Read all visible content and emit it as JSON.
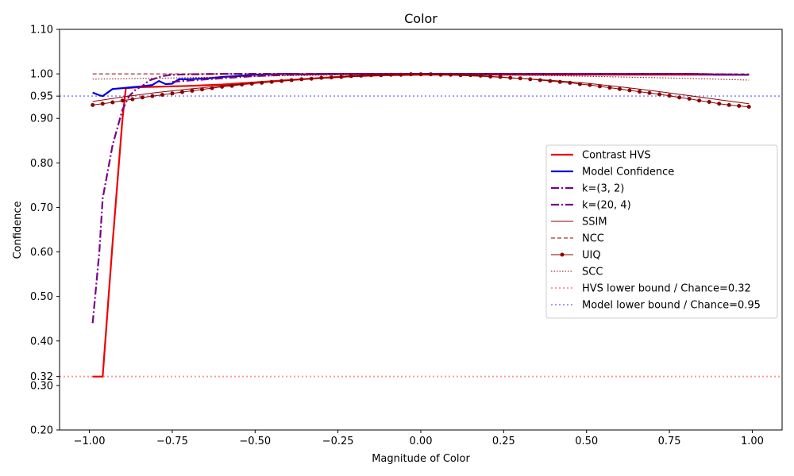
{
  "chart_data": {
    "type": "line",
    "title": "Color",
    "xlabel": "Magnitude of Color",
    "ylabel": "Confidence",
    "xlim": [
      -1.09,
      1.09
    ],
    "ylim": [
      0.2,
      1.1
    ],
    "x_ticks": [
      -1.0,
      -0.75,
      -0.5,
      -0.25,
      0.0,
      0.25,
      0.5,
      0.75,
      1.0
    ],
    "x_tick_labels": [
      "−1.00",
      "−0.75",
      "−0.50",
      "−0.25",
      "0.00",
      "0.25",
      "0.50",
      "0.75",
      "1.00"
    ],
    "y_ticks": [
      0.2,
      0.3,
      0.4,
      0.5,
      0.6,
      0.7,
      0.8,
      0.9,
      1.0,
      1.1
    ],
    "y_tick_labels": [
      "0.20",
      "0.30",
      "0.40",
      "0.50",
      "0.60",
      "0.70",
      "0.80",
      "0.90",
      "1.00",
      "1.10"
    ],
    "special_y_ticks": [
      {
        "value": 0.32,
        "label": "0.32",
        "color": "#ff0000"
      },
      {
        "value": 0.95,
        "label": "0.95",
        "color": "#0000cc"
      }
    ],
    "grid": false,
    "legend_position": "center-right",
    "series": [
      {
        "name": "Contrast HVS",
        "color": "#ee0000",
        "width": 2.2,
        "dash": "",
        "marker": false,
        "x": [
          -0.99,
          -0.97,
          -0.96,
          -0.93,
          -0.9,
          -0.89,
          -0.85,
          -0.8,
          -0.75,
          -0.7,
          -0.6,
          -0.5,
          -0.4,
          -0.3,
          -0.25,
          -0.2,
          -0.1,
          0.0,
          0.1,
          0.2,
          0.3,
          0.4,
          0.5,
          0.6,
          0.7,
          0.8,
          0.9,
          0.99
        ],
        "y": [
          0.32,
          0.32,
          0.32,
          0.62,
          0.9,
          0.968,
          0.97,
          0.971,
          0.972,
          0.973,
          0.976,
          0.981,
          0.986,
          0.991,
          0.993,
          0.995,
          0.997,
          0.998,
          0.998,
          0.998,
          0.998,
          0.998,
          0.998,
          0.998,
          0.998,
          0.998,
          0.998,
          0.998
        ]
      },
      {
        "name": "Model Confidence",
        "color": "#0000dd",
        "width": 2.2,
        "dash": "",
        "marker": false,
        "x": [
          -0.99,
          -0.97,
          -0.96,
          -0.93,
          -0.9,
          -0.87,
          -0.84,
          -0.81,
          -0.79,
          -0.77,
          -0.75,
          -0.73,
          -0.7,
          -0.67,
          -0.64,
          -0.6,
          -0.55,
          -0.5,
          -0.45,
          -0.4,
          -0.35,
          -0.3,
          -0.2,
          -0.1,
          0.0,
          0.2,
          0.4,
          0.6,
          0.8,
          0.9,
          0.99
        ],
        "y": [
          0.958,
          0.952,
          0.95,
          0.966,
          0.968,
          0.97,
          0.972,
          0.975,
          0.984,
          0.977,
          0.978,
          0.988,
          0.988,
          0.989,
          0.99,
          0.993,
          0.995,
          0.998,
          0.999,
          1.0,
          0.999,
          1.0,
          1.0,
          1.0,
          1.0,
          1.0,
          1.0,
          1.0,
          1.0,
          0.998,
          0.998
        ]
      },
      {
        "name": "k=(3, 2)",
        "color": "#7a008a",
        "width": 2.2,
        "dash": "10,3,2,3",
        "marker": false,
        "x": [
          -0.99,
          -0.97,
          -0.96,
          -0.93,
          -0.9,
          -0.88,
          -0.86,
          -0.84,
          -0.82,
          -0.8,
          -0.78,
          -0.75,
          -0.7,
          -0.6,
          -0.5,
          -0.4,
          -0.3,
          -0.2,
          0.0,
          0.2,
          0.4,
          0.6,
          0.8,
          0.99
        ],
        "y": [
          0.44,
          0.6,
          0.72,
          0.84,
          0.92,
          0.95,
          0.965,
          0.973,
          0.985,
          0.99,
          0.995,
          0.998,
          0.999,
          1.0,
          1.0,
          1.0,
          1.0,
          1.0,
          1.0,
          1.0,
          1.0,
          1.0,
          1.0,
          0.998
        ]
      },
      {
        "name": "k=(20, 4)",
        "color": "#7a008a",
        "width": 2.2,
        "dash": "10,3,2,3",
        "marker": false,
        "x": [
          -0.75,
          -0.7,
          -0.6,
          -0.5,
          -0.4,
          -0.3,
          -0.2,
          0.0,
          0.2,
          0.4,
          0.6,
          0.8,
          0.99
        ],
        "y": [
          0.982,
          0.985,
          0.99,
          0.995,
          0.998,
          0.999,
          1.0,
          1.0,
          1.0,
          1.0,
          1.0,
          1.0,
          0.998
        ]
      },
      {
        "name": "SSIM",
        "color": "#8b0000",
        "width": 1,
        "dash": "",
        "marker": false,
        "x": [
          -0.99,
          -0.9,
          -0.8,
          -0.7,
          -0.6,
          -0.5,
          -0.4,
          -0.3,
          -0.2,
          -0.1,
          0.0,
          0.1,
          0.2,
          0.3,
          0.4,
          0.5,
          0.6,
          0.7,
          0.8,
          0.9,
          0.99
        ],
        "y": [
          0.938,
          0.948,
          0.958,
          0.966,
          0.973,
          0.979,
          0.985,
          0.99,
          0.994,
          0.997,
          0.999,
          0.997,
          0.994,
          0.99,
          0.985,
          0.979,
          0.971,
          0.962,
          0.952,
          0.942,
          0.933
        ]
      },
      {
        "name": "NCC",
        "color": "#8b0000",
        "width": 1,
        "dash": "5,3",
        "marker": false,
        "x": [
          -0.99,
          -0.5,
          0.0,
          0.5,
          0.99
        ],
        "y": [
          1.0,
          1.0,
          1.0,
          1.0,
          1.0
        ]
      },
      {
        "name": "UIQ",
        "color": "#8b0000",
        "width": 1,
        "dash": "",
        "marker": true,
        "x": [
          -0.99,
          -0.96,
          -0.93,
          -0.9,
          -0.87,
          -0.84,
          -0.81,
          -0.78,
          -0.75,
          -0.72,
          -0.69,
          -0.66,
          -0.63,
          -0.6,
          -0.57,
          -0.54,
          -0.51,
          -0.48,
          -0.45,
          -0.42,
          -0.39,
          -0.36,
          -0.33,
          -0.3,
          -0.27,
          -0.24,
          -0.21,
          -0.18,
          -0.15,
          -0.12,
          -0.09,
          -0.06,
          -0.03,
          0.0,
          0.03,
          0.06,
          0.09,
          0.12,
          0.15,
          0.18,
          0.21,
          0.24,
          0.27,
          0.3,
          0.33,
          0.36,
          0.39,
          0.42,
          0.45,
          0.48,
          0.51,
          0.54,
          0.57,
          0.6,
          0.63,
          0.66,
          0.69,
          0.72,
          0.75,
          0.78,
          0.81,
          0.84,
          0.87,
          0.9,
          0.93,
          0.96,
          0.99
        ],
        "y": [
          0.93,
          0.933,
          0.936,
          0.94,
          0.943,
          0.947,
          0.95,
          0.953,
          0.956,
          0.959,
          0.962,
          0.965,
          0.968,
          0.971,
          0.973,
          0.976,
          0.978,
          0.98,
          0.982,
          0.984,
          0.986,
          0.988,
          0.989,
          0.991,
          0.992,
          0.993,
          0.995,
          0.996,
          0.997,
          0.997,
          0.998,
          0.998,
          0.999,
          0.999,
          0.999,
          0.998,
          0.998,
          0.997,
          0.997,
          0.996,
          0.994,
          0.993,
          0.991,
          0.99,
          0.988,
          0.986,
          0.984,
          0.982,
          0.98,
          0.977,
          0.975,
          0.972,
          0.969,
          0.966,
          0.963,
          0.96,
          0.957,
          0.954,
          0.951,
          0.947,
          0.944,
          0.94,
          0.937,
          0.933,
          0.93,
          0.928,
          0.926
        ]
      },
      {
        "name": "SCC",
        "color": "#8b0000",
        "width": 1,
        "dash": "1.5,2",
        "marker": false,
        "x": [
          -0.99,
          -0.8,
          -0.6,
          -0.4,
          -0.2,
          0.0,
          0.2,
          0.4,
          0.6,
          0.8,
          0.99
        ],
        "y": [
          0.988,
          0.99,
          0.993,
          0.996,
          0.998,
          0.999,
          0.998,
          0.996,
          0.993,
          0.99,
          0.986
        ]
      }
    ],
    "reference_lines": [
      {
        "name": "HVS lower bound / Chance=0.32",
        "value": 0.32,
        "color": "#ff9999"
      },
      {
        "name": "Model lower bound / Chance=0.95",
        "value": 0.95,
        "color": "#9999ff"
      }
    ]
  }
}
